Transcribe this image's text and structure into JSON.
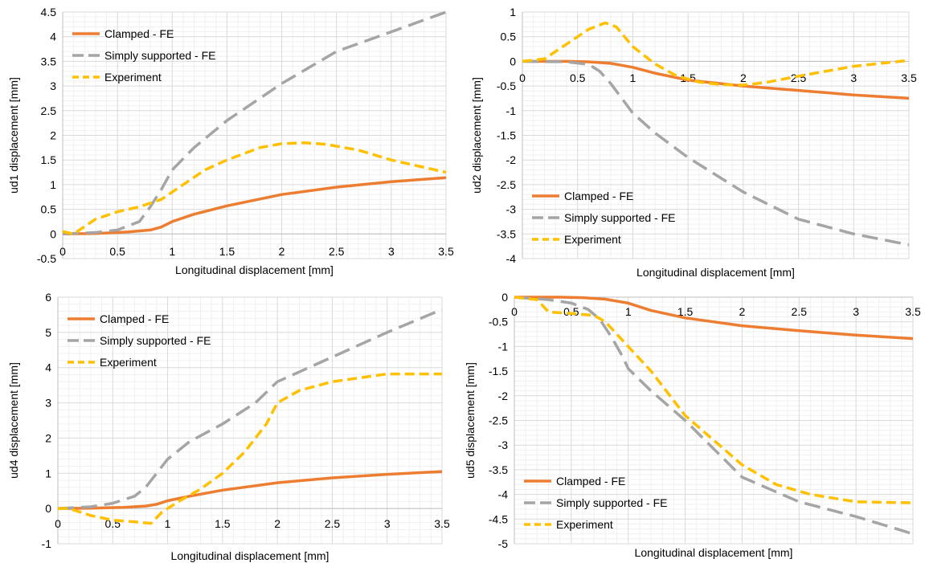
{
  "colors": {
    "clamped": "#ED7D31",
    "simply_supported": "#A5A5A5",
    "experiment": "#FFC000",
    "major_grid": "#d9d9d9",
    "minor_grid": "#f0f0f0",
    "axis": "#bfbfbf"
  },
  "chart_data": [
    {
      "id": "ud1",
      "type": "line",
      "title": "",
      "xlabel": "Longitudinal displacement [mm]",
      "ylabel": "ud1 displacement [mm]",
      "xlim": [
        0,
        3.5
      ],
      "ylim": [
        -0.5,
        4.5
      ],
      "xticks": [
        0,
        0.5,
        1,
        1.5,
        2,
        2.5,
        3,
        3.5
      ],
      "yticks": [
        -0.5,
        0,
        0.5,
        1,
        1.5,
        2,
        2.5,
        3,
        3.5,
        4,
        4.5
      ],
      "grid": true,
      "legend_position": "top-left",
      "series": [
        {
          "name": "Clamped - FE",
          "style": "solid",
          "x": [
            0,
            0.3,
            0.6,
            0.8,
            0.9,
            1.0,
            1.2,
            1.5,
            2.0,
            2.5,
            3.0,
            3.5
          ],
          "y": [
            0,
            0.01,
            0.04,
            0.08,
            0.14,
            0.25,
            0.4,
            0.57,
            0.8,
            0.95,
            1.06,
            1.14
          ]
        },
        {
          "name": "Simply supported - FE",
          "style": "dashed",
          "x": [
            0,
            0.3,
            0.5,
            0.7,
            0.8,
            0.9,
            1.0,
            1.2,
            1.5,
            2.0,
            2.5,
            3.0,
            3.5
          ],
          "y": [
            0,
            0.03,
            0.08,
            0.25,
            0.55,
            0.9,
            1.3,
            1.75,
            2.3,
            3.05,
            3.7,
            4.1,
            4.5
          ]
        },
        {
          "name": "Experiment",
          "style": "short-dashed",
          "x": [
            0,
            0.1,
            0.3,
            0.5,
            0.7,
            0.9,
            1.1,
            1.3,
            1.5,
            1.8,
            2.0,
            2.2,
            2.4,
            2.7,
            3.0,
            3.3,
            3.5
          ],
          "y": [
            0.05,
            0.0,
            0.3,
            0.45,
            0.55,
            0.7,
            1.0,
            1.3,
            1.5,
            1.75,
            1.83,
            1.85,
            1.82,
            1.7,
            1.5,
            1.35,
            1.25
          ]
        }
      ]
    },
    {
      "id": "ud2",
      "type": "line",
      "title": "",
      "xlabel": "Longitudinal displacement [mm]",
      "ylabel": "ud2 displacement [mm]",
      "xlim": [
        0,
        3.5
      ],
      "ylim": [
        -4,
        1
      ],
      "xticks": [
        0,
        0.5,
        1,
        1.5,
        2,
        2.5,
        3,
        3.5
      ],
      "yticks": [
        -4,
        -3.5,
        -3,
        -2.5,
        -2,
        -1.5,
        -1,
        -0.5,
        0,
        0.5,
        1
      ],
      "grid": true,
      "legend_position": "bottom-left",
      "series": [
        {
          "name": "Clamped - FE",
          "style": "solid",
          "x": [
            0,
            0.4,
            0.6,
            0.8,
            1.0,
            1.2,
            1.5,
            2.0,
            2.5,
            3.0,
            3.5
          ],
          "y": [
            0,
            0,
            -0.01,
            -0.04,
            -0.12,
            -0.24,
            -0.38,
            -0.5,
            -0.59,
            -0.68,
            -0.75
          ]
        },
        {
          "name": "Simply supported - FE",
          "style": "dashed",
          "x": [
            0,
            0.4,
            0.6,
            0.7,
            0.8,
            0.9,
            1.0,
            1.2,
            1.5,
            2.0,
            2.5,
            3.0,
            3.5
          ],
          "y": [
            0,
            -0.01,
            -0.06,
            -0.2,
            -0.45,
            -0.75,
            -1.05,
            -1.45,
            -1.95,
            -2.65,
            -3.2,
            -3.5,
            -3.72
          ]
        },
        {
          "name": "Experiment",
          "style": "short-dashed",
          "x": [
            0,
            0.2,
            0.4,
            0.6,
            0.75,
            0.85,
            1.0,
            1.2,
            1.4,
            1.6,
            1.8,
            2.0,
            2.2,
            2.5,
            3.0,
            3.5
          ],
          "y": [
            0,
            0.05,
            0.35,
            0.65,
            0.78,
            0.7,
            0.3,
            -0.05,
            -0.3,
            -0.42,
            -0.47,
            -0.48,
            -0.43,
            -0.3,
            -0.1,
            0.02
          ]
        }
      ]
    },
    {
      "id": "ud4",
      "type": "line",
      "title": "",
      "xlabel": "Longitudinal displacement [mm]",
      "ylabel": "ud4 displacement [mm]",
      "xlim": [
        0,
        3.5
      ],
      "ylim": [
        -1,
        6
      ],
      "xticks": [
        0,
        0.5,
        1,
        1.5,
        2,
        2.5,
        3,
        3.5
      ],
      "yticks": [
        -1,
        0,
        1,
        2,
        3,
        4,
        5,
        6
      ],
      "grid": true,
      "legend_position": "top-left",
      "series": [
        {
          "name": "Clamped - FE",
          "style": "solid",
          "x": [
            0,
            0.3,
            0.6,
            0.8,
            0.9,
            1.0,
            1.2,
            1.5,
            2.0,
            2.5,
            3.0,
            3.5
          ],
          "y": [
            0,
            0.01,
            0.03,
            0.07,
            0.12,
            0.22,
            0.35,
            0.52,
            0.73,
            0.87,
            0.97,
            1.05
          ]
        },
        {
          "name": "Simply supported - FE",
          "style": "dashed",
          "x": [
            0,
            0.3,
            0.5,
            0.7,
            0.8,
            0.9,
            1.0,
            1.2,
            1.5,
            1.8,
            2.0,
            2.5,
            3.0,
            3.5
          ],
          "y": [
            0,
            0.05,
            0.15,
            0.35,
            0.6,
            1.0,
            1.4,
            1.9,
            2.4,
            3.0,
            3.6,
            4.3,
            5.0,
            5.65
          ]
        },
        {
          "name": "Experiment",
          "style": "short-dashed",
          "x": [
            0,
            0.1,
            0.3,
            0.5,
            0.7,
            0.85,
            0.95,
            1.1,
            1.3,
            1.5,
            1.7,
            1.9,
            2.0,
            2.2,
            2.5,
            3.0,
            3.5
          ],
          "y": [
            0,
            0.0,
            -0.2,
            -0.33,
            -0.38,
            -0.42,
            -0.1,
            0.2,
            0.55,
            1.0,
            1.6,
            2.4,
            3.0,
            3.35,
            3.6,
            3.82,
            3.82
          ]
        }
      ]
    },
    {
      "id": "ud5",
      "type": "line",
      "title": "",
      "xlabel": "Longitudinal displacement [mm]",
      "ylabel": "ud5 displacement [mm]",
      "xlim": [
        0,
        3.5
      ],
      "ylim": [
        -5,
        0
      ],
      "xticks": [
        0,
        0.5,
        1,
        1.5,
        2,
        2.5,
        3,
        3.5
      ],
      "yticks": [
        -5,
        -4.5,
        -4,
        -3.5,
        -3,
        -2.5,
        -2,
        -1.5,
        -1,
        -0.5,
        0
      ],
      "grid": true,
      "legend_position": "bottom-left",
      "series": [
        {
          "name": "Clamped - FE",
          "style": "solid",
          "x": [
            0,
            0.4,
            0.6,
            0.8,
            1.0,
            1.2,
            1.5,
            2.0,
            2.5,
            3.0,
            3.5
          ],
          "y": [
            0,
            0,
            -0.01,
            -0.04,
            -0.12,
            -0.27,
            -0.42,
            -0.58,
            -0.68,
            -0.77,
            -0.84
          ]
        },
        {
          "name": "Simply supported - FE",
          "style": "dashed",
          "x": [
            0,
            0.3,
            0.5,
            0.65,
            0.75,
            0.85,
            0.95,
            1.0,
            1.2,
            1.5,
            2.0,
            2.5,
            3.0,
            3.5
          ],
          "y": [
            0,
            -0.05,
            -0.12,
            -0.25,
            -0.45,
            -0.8,
            -1.2,
            -1.45,
            -1.9,
            -2.5,
            -3.65,
            -4.15,
            -4.45,
            -4.8
          ]
        },
        {
          "name": "Experiment",
          "style": "short-dashed",
          "x": [
            0,
            0.2,
            0.3,
            0.5,
            0.7,
            0.8,
            0.9,
            1.0,
            1.2,
            1.5,
            1.8,
            2.0,
            2.3,
            2.6,
            3.0,
            3.5
          ],
          "y": [
            0,
            -0.05,
            -0.3,
            -0.33,
            -0.37,
            -0.5,
            -0.75,
            -1.0,
            -1.5,
            -2.4,
            -3.0,
            -3.4,
            -3.8,
            -4.0,
            -4.15,
            -4.17
          ]
        }
      ]
    }
  ]
}
